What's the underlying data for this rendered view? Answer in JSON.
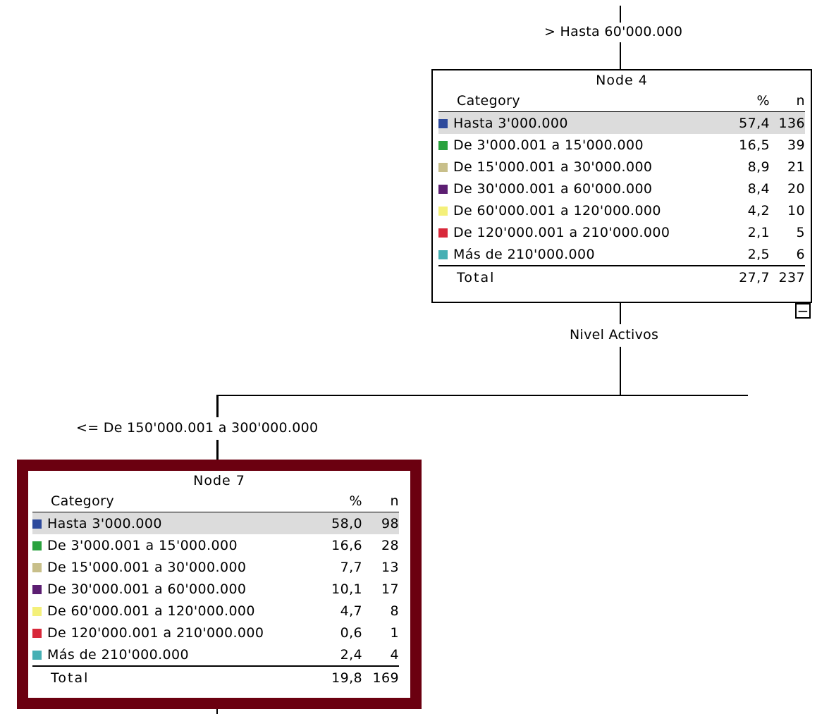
{
  "edges": {
    "top_label": "> Hasta 60'000.000",
    "split_variable": "Nivel Activos",
    "left_label": "<= De 150'000.001 a 300'000.000"
  },
  "nodes": [
    {
      "title": "Node 4",
      "headers": {
        "category": "Category",
        "pct": "%",
        "n": "n"
      },
      "rows": [
        {
          "label": "Hasta 3'000.000",
          "pct": "57,4",
          "n": "136",
          "color": "#2e4a9c"
        },
        {
          "label": "De 3'000.001 a 15'000.000",
          "pct": "16,5",
          "n": "39",
          "color": "#2aa23e"
        },
        {
          "label": "De 15'000.001 a 30'000.000",
          "pct": "8,9",
          "n": "21",
          "color": "#c8bf8a"
        },
        {
          "label": "De 30'000.001 a 60'000.000",
          "pct": "8,4",
          "n": "20",
          "color": "#5c1e72"
        },
        {
          "label": "De 60'000.001 a 120'000.000",
          "pct": "4,2",
          "n": "10",
          "color": "#f4f07a"
        },
        {
          "label": "De 120'000.001 a 210'000.000",
          "pct": "2,1",
          "n": "5",
          "color": "#d8283a"
        },
        {
          "label": "Más de 210'000.000",
          "pct": "2,5",
          "n": "6",
          "color": "#46b0b4"
        }
      ],
      "total": {
        "label": "Total",
        "pct": "27,7",
        "n": "237"
      },
      "collapse_symbol": "−"
    },
    {
      "title": "Node 7",
      "headers": {
        "category": "Category",
        "pct": "%",
        "n": "n"
      },
      "rows": [
        {
          "label": "Hasta 3'000.000",
          "pct": "58,0",
          "n": "98",
          "color": "#2e4a9c"
        },
        {
          "label": "De 3'000.001 a 15'000.000",
          "pct": "16,6",
          "n": "28",
          "color": "#2aa23e"
        },
        {
          "label": "De 15'000.001 a 30'000.000",
          "pct": "7,7",
          "n": "13",
          "color": "#c8bf8a"
        },
        {
          "label": "De 30'000.001 a 60'000.000",
          "pct": "10,1",
          "n": "17",
          "color": "#5c1e72"
        },
        {
          "label": "De 60'000.001 a 120'000.000",
          "pct": "4,7",
          "n": "8",
          "color": "#f4f07a"
        },
        {
          "label": "De 120'000.001 a 210'000.000",
          "pct": "0,6",
          "n": "1",
          "color": "#d8283a"
        },
        {
          "label": "Más de 210'000.000",
          "pct": "2,4",
          "n": "4",
          "color": "#46b0b4"
        }
      ],
      "total": {
        "label": "Total",
        "pct": "19,8",
        "n": "169"
      }
    }
  ]
}
